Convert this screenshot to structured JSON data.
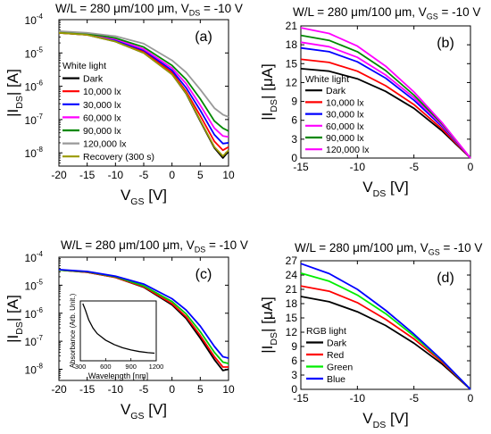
{
  "figure": {
    "titles": {
      "a": {
        "main": "W/L = 280 μm/100 μm, V",
        "sub": "DS",
        "tail": " = -10 V"
      },
      "b": {
        "main": "W/L = 280 μm/100 μm, V",
        "sub": "GS",
        "tail": " = -10 V"
      },
      "c": {
        "main": "W/L = 280 μm/100 μm, V",
        "sub": "DS",
        "tail": " = -10 V"
      },
      "d": {
        "main": "W/L = 280 μm/100 μm, V",
        "sub": "GS",
        "tail": " = -10 V"
      }
    }
  },
  "chart_data": [
    {
      "id": "a",
      "type": "line",
      "panel_label": "(a)",
      "xlabel": {
        "main": "V",
        "sub": "GS",
        "tail": " [V]"
      },
      "ylabel": {
        "main": "|I",
        "sub": "DS",
        "tail": "| [A]"
      },
      "xlim": [
        -20,
        10
      ],
      "ylim": [
        4e-09,
        0.0001
      ],
      "yscale": "log",
      "xticks": [
        -20,
        -15,
        -10,
        -5,
        0,
        5,
        10
      ],
      "yticks": [
        1e-08,
        1e-07,
        1e-06,
        1e-05,
        0.0001
      ],
      "yticklabels": [
        [
          "10",
          "-8"
        ],
        [
          "10",
          "-7"
        ],
        [
          "10",
          "-6"
        ],
        [
          "10",
          "-5"
        ],
        [
          "10",
          "-4"
        ]
      ],
      "legend_title": "White light",
      "legend_position": "bottom-left",
      "x": [
        -20,
        -15,
        -10,
        -5,
        0,
        2.5,
        5,
        7.5,
        9,
        10
      ],
      "series": [
        {
          "name": "Dark",
          "color": "#000000",
          "values": [
            4e-05,
            3.5e-05,
            2.2e-05,
            1e-05,
            2.3e-06,
            6e-07,
            9e-08,
            1.4e-08,
            7e-09,
            1.1e-08
          ]
        },
        {
          "name": "10,000 lx",
          "color": "#ff0000",
          "values": [
            4e-05,
            3.5e-05,
            2.3e-05,
            1.1e-05,
            2.6e-06,
            7e-07,
            1.3e-07,
            2.2e-08,
            1.2e-08,
            1.5e-08
          ]
        },
        {
          "name": "30,000 lx",
          "color": "#0000ff",
          "values": [
            4.1e-05,
            3.6e-05,
            2.4e-05,
            1.2e-05,
            3e-06,
            9e-07,
            1.9e-07,
            3.5e-08,
            1.9e-08,
            2e-08
          ]
        },
        {
          "name": "60,000 lx",
          "color": "#ff00ff",
          "values": [
            4.2e-05,
            3.7e-05,
            2.6e-05,
            1.3e-05,
            3.5e-06,
            1.2e-06,
            2.7e-07,
            5.5e-08,
            3.2e-08,
            3e-08
          ]
        },
        {
          "name": "90,000 lx",
          "color": "#008800",
          "values": [
            4.3e-05,
            3.8e-05,
            2.8e-05,
            1.5e-05,
            4.2e-06,
            1.6e-06,
            4.2e-07,
            9e-08,
            5.5e-08,
            4.5e-08
          ]
        },
        {
          "name": "120,000 lx",
          "color": "#999999",
          "values": [
            4.5e-05,
            4e-05,
            3.2e-05,
            1.9e-05,
            6e-06,
            2.6e-06,
            8e-07,
            2.2e-07,
            1.4e-07,
            1.2e-07
          ]
        },
        {
          "name": "Recovery (300 s)",
          "color": "#999900",
          "values": [
            4e-05,
            3.5e-05,
            2.2e-05,
            1e-05,
            2.3e-06,
            6.2e-07,
            9.5e-08,
            1.5e-08,
            8e-09,
            1.2e-08
          ]
        }
      ]
    },
    {
      "id": "b",
      "type": "line",
      "panel_label": "(b)",
      "xlabel": {
        "main": "V",
        "sub": "DS",
        "tail": " [V]"
      },
      "ylabel": {
        "main": "|I",
        "sub": "DS",
        "tail": "| [μA]"
      },
      "xlim": [
        -15,
        0
      ],
      "ylim": [
        0,
        21
      ],
      "yscale": "linear",
      "xticks": [
        -15,
        -10,
        -5,
        0
      ],
      "yticks": [
        0,
        3,
        6,
        9,
        12,
        15,
        18,
        21
      ],
      "legend_title": "White light",
      "legend_position": "middle-left",
      "x": [
        -15,
        -12.5,
        -10,
        -7.5,
        -5,
        -2.5,
        0
      ],
      "series": [
        {
          "name": "Dark",
          "color": "#000000",
          "values": [
            14.2,
            13.8,
            12.6,
            10.6,
            7.9,
            4.3,
            0
          ]
        },
        {
          "name": "10,000 lx",
          "color": "#ff0000",
          "values": [
            15.7,
            15.2,
            13.8,
            11.5,
            8.5,
            4.6,
            0
          ]
        },
        {
          "name": "30,000 lx",
          "color": "#0000ff",
          "values": [
            17.5,
            16.9,
            15.3,
            12.7,
            9.2,
            5,
            0
          ]
        },
        {
          "name": "60,000 lx",
          "color": "#ff00ff",
          "values": [
            18.4,
            17.7,
            16,
            13.2,
            9.6,
            5.2,
            0
          ]
        },
        {
          "name": "90,000 lx",
          "color": "#008800",
          "values": [
            19.5,
            18.7,
            16.9,
            13.9,
            10,
            5.4,
            0
          ]
        },
        {
          "name": "120,000 lx",
          "color": "#ff00ff",
          "values": [
            20.7,
            19.8,
            17.8,
            14.6,
            10.5,
            5.6,
            0
          ]
        }
      ]
    },
    {
      "id": "c",
      "type": "line",
      "panel_label": "(c)",
      "xlabel": {
        "main": "V",
        "sub": "GS",
        "tail": " [V]"
      },
      "ylabel": {
        "main": "|I",
        "sub": "DS",
        "tail": "| [A]"
      },
      "xlim": [
        -20,
        10
      ],
      "ylim": [
        4e-09,
        0.0001
      ],
      "yscale": "log",
      "xticks": [
        -20,
        -15,
        -10,
        -5,
        0,
        5,
        10
      ],
      "yticks": [
        1e-08,
        1e-07,
        1e-06,
        1e-05,
        0.0001
      ],
      "yticklabels": [
        [
          "10",
          "-8"
        ],
        [
          "10",
          "-7"
        ],
        [
          "10",
          "-6"
        ],
        [
          "10",
          "-5"
        ],
        [
          "10",
          "-4"
        ]
      ],
      "x": [
        -20,
        -15,
        -10,
        -5,
        0,
        2.5,
        5,
        7.5,
        9,
        10
      ],
      "series": [
        {
          "name": "Dark",
          "color": "#000000",
          "values": [
            3.5e-05,
            2.9e-05,
            1.9e-05,
            8.5e-06,
            2e-06,
            6.5e-07,
            1.3e-07,
            2.2e-08,
            9e-09,
            1e-08
          ]
        },
        {
          "name": "Red",
          "color": "#ff0000",
          "values": [
            3.5e-05,
            2.9e-05,
            1.9e-05,
            8.8e-06,
            2.2e-06,
            7.5e-07,
            1.6e-07,
            2.8e-08,
            1.2e-08,
            1.2e-08
          ]
        },
        {
          "name": "Green",
          "color": "#00cc00",
          "values": [
            3.5e-05,
            3e-05,
            2e-05,
            9.5e-06,
            2.6e-06,
            9.5e-07,
            2.2e-07,
            4e-08,
            1.8e-08,
            1.6e-08
          ]
        },
        {
          "name": "Blue",
          "color": "#0000ff",
          "values": [
            3.6e-05,
            3.1e-05,
            2.1e-05,
            1.1e-05,
            3.3e-06,
            1.3e-06,
            3.5e-07,
            6.5e-08,
            2.8e-08,
            2.5e-08
          ]
        }
      ],
      "inset": {
        "type": "line",
        "xlabel": "Wavelength [nm]",
        "ylabel": "Absorbance (Arb. Unit.)",
        "xlim": [
          300,
          1200
        ],
        "xticks": [
          300,
          600,
          900,
          1200
        ],
        "x": [
          330,
          360,
          400,
          450,
          500,
          600,
          700,
          800,
          900,
          1000,
          1100,
          1180
        ],
        "values": [
          1.0,
          0.88,
          0.7,
          0.55,
          0.45,
          0.33,
          0.25,
          0.19,
          0.15,
          0.12,
          0.1,
          0.09
        ]
      }
    },
    {
      "id": "d",
      "type": "line",
      "panel_label": "(d)",
      "xlabel": {
        "main": "V",
        "sub": "DS",
        "tail": " [V]"
      },
      "ylabel": {
        "main": "|I",
        "sub": "DS",
        "tail": "| [μA]"
      },
      "xlim": [
        -15,
        0
      ],
      "ylim": [
        0,
        27
      ],
      "yscale": "linear",
      "xticks": [
        -15,
        -10,
        -5,
        0
      ],
      "yticks": [
        0,
        3,
        6,
        9,
        12,
        15,
        18,
        21,
        24,
        27
      ],
      "legend_title": "RGB light",
      "legend_position": "bottom-left",
      "x": [
        -15,
        -12.5,
        -10,
        -7.5,
        -5,
        -2.5,
        0
      ],
      "series": [
        {
          "name": "Dark",
          "color": "#000000",
          "values": [
            19.5,
            18.4,
            16.3,
            13.4,
            9.7,
            5.3,
            0
          ]
        },
        {
          "name": "Red",
          "color": "#ff0000",
          "values": [
            21.7,
            20.6,
            18.2,
            14.7,
            10.6,
            5.7,
            0
          ]
        },
        {
          "name": "Green",
          "color": "#00ee00",
          "values": [
            24.4,
            22.7,
            19.8,
            15.9,
            11.2,
            6,
            0
          ]
        },
        {
          "name": "Blue",
          "color": "#0000ff",
          "values": [
            26.4,
            24.3,
            21,
            16.6,
            11.6,
            6.1,
            0
          ]
        }
      ]
    }
  ]
}
